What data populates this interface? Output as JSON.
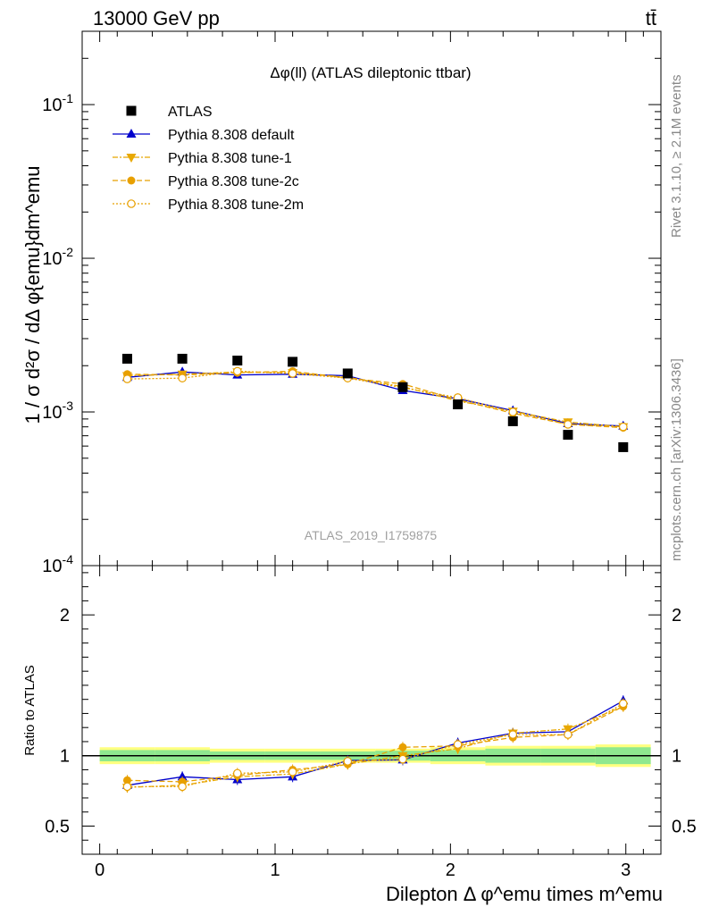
{
  "header": {
    "left": "13000 GeV pp",
    "right": "tt̄"
  },
  "side_labels": {
    "rivet": "Rivet 3.1.10, ≥ 2.1M events",
    "mcplots": "mcplots.cern.ch [arXiv:1306.3436]"
  },
  "watermark": "ATLAS_2019_I1759875",
  "chart_data": {
    "type": "line",
    "title": "Δφ(ll) (ATLAS dileptonic ttbar)",
    "xlabel": "Dilepton Δ φ^emu times m^emu",
    "ylabel": "1 / σ d²σ / dΔ φ{emu}dm^emu",
    "xlim": [
      -0.1,
      3.2
    ],
    "x_ticks": [
      "0",
      "1",
      "2",
      "3"
    ],
    "main": {
      "yscale": "log",
      "ylim": [
        0.0001,
        0.3
      ],
      "y_ticks": [
        "10^-4",
        "10^-3",
        "10^-2",
        "10^-1"
      ]
    },
    "ratio": {
      "ylabel": "Ratio to ATLAS",
      "ylim": [
        0.3,
        2.35
      ],
      "y_ticks": [
        "0.5",
        "1",
        "2"
      ],
      "band_halfwidth": [
        0.04,
        0.04,
        0.03,
        0.03,
        0.03,
        0.035,
        0.04,
        0.05,
        0.05,
        0.06
      ],
      "band_outer_halfwidth": [
        0.06,
        0.06,
        0.05,
        0.05,
        0.05,
        0.05,
        0.06,
        0.07,
        0.07,
        0.08
      ]
    },
    "legend_position": "top-left",
    "x": [
      0.157,
      0.471,
      0.785,
      1.1,
      1.414,
      1.728,
      2.042,
      2.356,
      2.67,
      2.985
    ],
    "bin_edges": [
      0,
      0.314,
      0.628,
      0.942,
      1.257,
      1.571,
      1.885,
      2.199,
      2.513,
      2.827,
      3.142
    ],
    "series": [
      {
        "name": "ATLAS",
        "style": "data",
        "color": "#000000",
        "marker": "square",
        "values": [
          0.00222,
          0.00222,
          0.00216,
          0.00212,
          0.00178,
          0.00145,
          0.00112,
          0.00087,
          0.00071,
          0.00059
        ],
        "ratio": [
          1,
          1,
          1,
          1,
          1,
          1,
          1,
          1,
          1,
          1
        ]
      },
      {
        "name": "Pythia 8.308 default",
        "style": "solid",
        "color": "#0000cc",
        "marker": "triangle-up",
        "values": [
          0.00168,
          0.00182,
          0.00174,
          0.00176,
          0.00172,
          0.00138,
          0.00122,
          0.00102,
          0.00084,
          0.00081
        ],
        "ratio": [
          0.79,
          0.85,
          0.83,
          0.85,
          0.965,
          0.97,
          1.09,
          1.16,
          1.17,
          1.39
        ]
      },
      {
        "name": "Pythia 8.308 tune-1",
        "style": "dashdot",
        "color": "#e8a800",
        "marker": "triangle-down",
        "values": [
          0.00172,
          0.00176,
          0.00182,
          0.0018,
          0.00168,
          0.00146,
          0.00118,
          0.00101,
          0.00086,
          0.0008
        ],
        "ratio": [
          0.775,
          0.79,
          0.85,
          0.87,
          0.94,
          1.0,
          1.05,
          1.16,
          1.19,
          1.35
        ]
      },
      {
        "name": "Pythia 8.308 tune-2c",
        "style": "dashed",
        "color": "#e8a000",
        "marker": "circle",
        "values": [
          0.00176,
          0.00174,
          0.0018,
          0.00184,
          0.00166,
          0.00152,
          0.0012,
          0.00098,
          0.00083,
          0.00079
        ],
        "ratio": [
          0.825,
          0.815,
          0.86,
          0.9,
          0.94,
          1.06,
          1.07,
          1.13,
          1.15,
          1.35
        ]
      },
      {
        "name": "Pythia 8.308 tune-2m",
        "style": "dotted",
        "color": "#e8a000",
        "marker": "circle-open",
        "values": [
          0.00164,
          0.00166,
          0.00184,
          0.00178,
          0.00166,
          0.00144,
          0.00124,
          0.001,
          0.00083,
          0.0008
        ],
        "ratio": [
          0.78,
          0.78,
          0.875,
          0.885,
          0.96,
          0.975,
          1.08,
          1.15,
          1.15,
          1.37
        ]
      }
    ]
  }
}
